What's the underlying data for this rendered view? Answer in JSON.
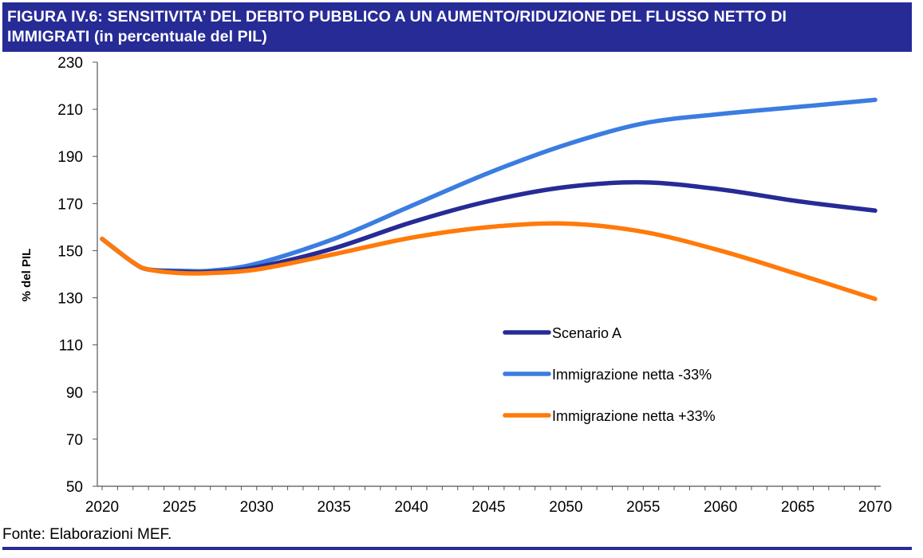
{
  "title_line1": "FIGURA IV.6: SENSITIVITA’ DEL DEBITO PUBBLICO A UN AUMENTO/RIDUZIONE DEL FLUSSO NETTO DI",
  "title_line2": "IMMIGRATI (in percentuale del PIL)",
  "source": "Fonte: Elaborazioni MEF.",
  "colors": {
    "header": "#262b96",
    "scenario_a": "#262b96",
    "minus33": "#3b7de0",
    "plus33": "#ff7a0a"
  },
  "chart_data": {
    "type": "line",
    "title": "FIGURA IV.6: SENSITIVITA’ DEL DEBITO PUBBLICO A UN AUMENTO/RIDUZIONE DEL FLUSSO NETTO DI IMMIGRATI (in percentuale del PIL)",
    "xlabel": "",
    "ylabel": "% del PIL",
    "xlim": [
      2020,
      2070
    ],
    "ylim": [
      50,
      230
    ],
    "yticks": [
      "50",
      "70",
      "90",
      "110",
      "130",
      "150",
      "170",
      "190",
      "210",
      "230"
    ],
    "xticks": [
      "2020",
      "2025",
      "2030",
      "2035",
      "2040",
      "2045",
      "2050",
      "2055",
      "2060",
      "2065",
      "2070"
    ],
    "grid": false,
    "legend": "center-right",
    "x": [
      2020,
      2022,
      2023,
      2025,
      2027,
      2030,
      2035,
      2040,
      2045,
      2050,
      2055,
      2060,
      2065,
      2070
    ],
    "series": [
      {
        "name": "Scenario A",
        "color": "#262b96",
        "values": [
          155,
          145,
          142,
          141,
          141,
          143,
          151,
          162,
          171,
          177,
          179,
          176,
          171,
          167
        ]
      },
      {
        "name": "Immigrazione netta -33%",
        "color": "#3b7de0",
        "values": [
          155,
          145,
          142,
          141.5,
          141.5,
          144.5,
          155,
          169,
          183,
          195,
          204,
          208,
          211,
          214
        ]
      },
      {
        "name": "Immigrazione netta +33%",
        "color": "#ff7a0a",
        "values": [
          155,
          145,
          142,
          140.5,
          140.5,
          142,
          148.5,
          155.5,
          160,
          161.5,
          158,
          150,
          140,
          129.5
        ]
      }
    ]
  }
}
